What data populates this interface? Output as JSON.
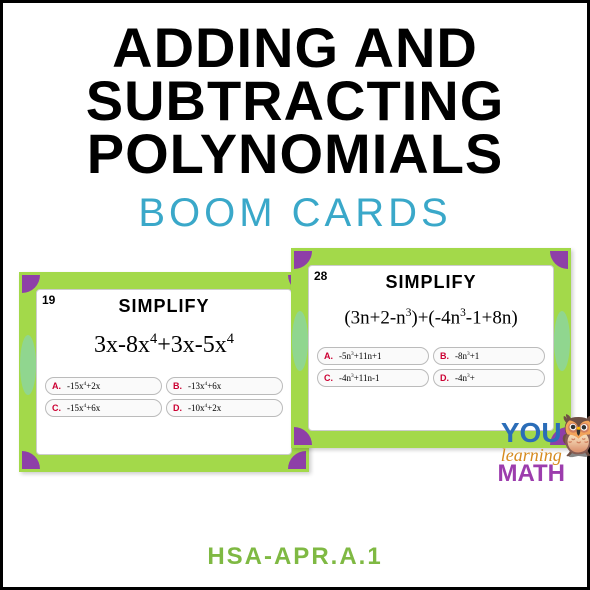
{
  "title": {
    "line1": "ADDING AND",
    "line2": "SUBTRACTING",
    "line3": "POLYNOMIALS"
  },
  "subtitle": {
    "text": "BOOM CARDS",
    "color": "#3aa8c9"
  },
  "footer": {
    "text": "HSA-APR.A.1",
    "color": "#7fb943"
  },
  "card1": {
    "number": "19",
    "title": "SIMPLIFY",
    "border_color": "#a3d94a",
    "corner_color": "#8e3fa8",
    "deco_color": "#7dd4d4",
    "expression_html": "3x-8x<sup>4</sup>+3x-5x<sup>4</sup>",
    "expression_fontsize": "24px",
    "answers": [
      {
        "letter": "A.",
        "text_html": "-15x<sup>4</sup>+2x"
      },
      {
        "letter": "B.",
        "text_html": "-13x<sup>4</sup>+6x"
      },
      {
        "letter": "C.",
        "text_html": "-15x<sup>4</sup>+6x"
      },
      {
        "letter": "D.",
        "text_html": "-10x<sup>4</sup>+2x"
      }
    ]
  },
  "card2": {
    "number": "28",
    "title": "SIMPLIFY",
    "border_color": "#a3d94a",
    "corner_color": "#8e3fa8",
    "deco_color": "#7dd4d4",
    "expression_html": "(3n+2-n<sup>3</sup>)+(-4n<sup>3</sup>-1+8n)",
    "expression_fontsize": "19px",
    "answers": [
      {
        "letter": "A.",
        "text_html": "-5n<sup>3</sup>+11n+1"
      },
      {
        "letter": "B.",
        "text_html": "-8n<sup>3</sup>+1"
      },
      {
        "letter": "C.",
        "text_html": "-4n<sup>3</sup>+11n-1"
      },
      {
        "letter": "D.",
        "text_html": "-4n<sup>3</sup>+"
      }
    ]
  },
  "logo": {
    "line1": "YOU",
    "line1_color": "#2b6db8",
    "line2": "learning",
    "line2_color": "#d68b1f",
    "line3": "MATH",
    "line3_color": "#9c3dad",
    "owl_glyph": "🦉"
  }
}
